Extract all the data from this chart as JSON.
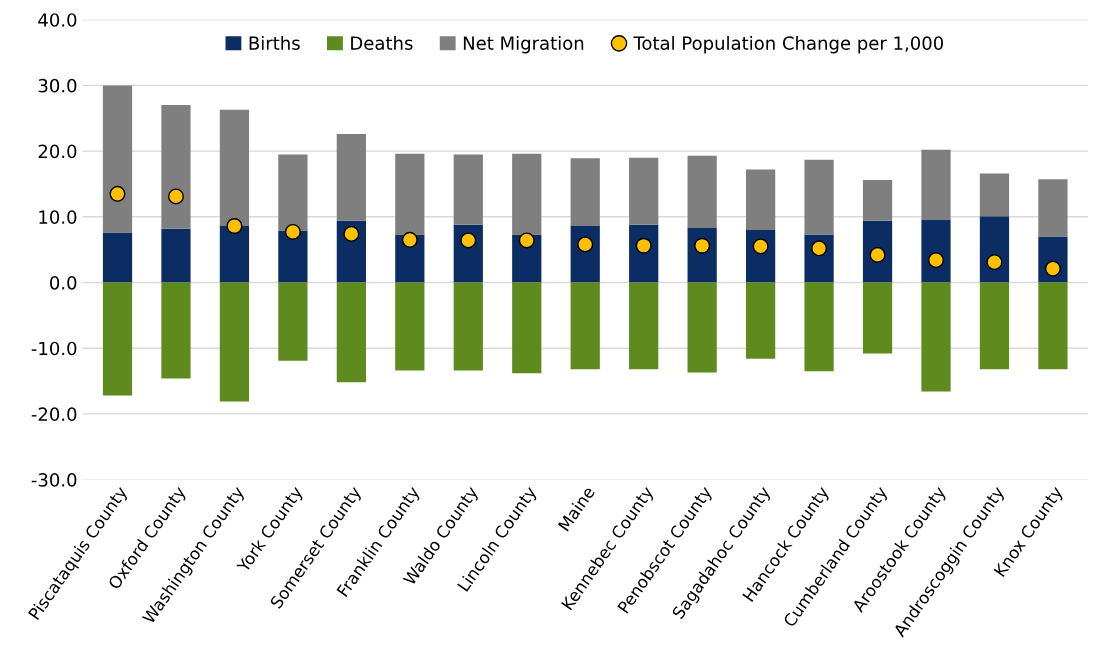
{
  "chart_data": {
    "type": "bar",
    "stacked": true,
    "categories": [
      "Piscataquis County",
      "Oxford County",
      "Washington County",
      "York County",
      "Somerset County",
      "Franklin County",
      "Waldo County",
      "Lincoln County",
      "Maine",
      "Kennebec County",
      "Penobscot County",
      "Sagadahoc County",
      "Hancock County",
      "Cumberland County",
      "Aroostook County",
      "Androscoggin County",
      "Knox County"
    ],
    "series": [
      {
        "name": "Births",
        "color": "#0b2d63",
        "values": [
          7.6,
          8.2,
          8.6,
          7.9,
          9.4,
          7.3,
          8.8,
          7.3,
          8.6,
          8.8,
          8.3,
          8.0,
          7.3,
          9.4,
          9.5,
          10.1,
          7.0
        ]
      },
      {
        "name": "Deaths",
        "color": "#5f8a1d",
        "values": [
          -17.2,
          -14.6,
          -18.1,
          -11.9,
          -15.2,
          -13.4,
          -13.4,
          -13.8,
          -13.2,
          -13.2,
          -13.7,
          -11.6,
          -13.5,
          -10.8,
          -16.6,
          -13.2,
          -13.2
        ]
      },
      {
        "name": "Net Migration",
        "color": "#7f7f7f",
        "values": [
          22.4,
          18.8,
          17.7,
          11.6,
          13.2,
          12.3,
          10.7,
          12.3,
          10.3,
          10.2,
          11.0,
          9.2,
          11.4,
          6.2,
          10.7,
          6.5,
          8.7
        ]
      },
      {
        "name": "Total Population Change per 1,000",
        "type": "scatter",
        "color": "#ffc000",
        "marker": "circle",
        "values": [
          13.5,
          13.1,
          8.6,
          7.7,
          7.4,
          6.5,
          6.4,
          6.4,
          5.8,
          5.6,
          5.6,
          5.5,
          5.2,
          4.2,
          3.4,
          3.1,
          2.1
        ]
      }
    ],
    "ylim": [
      -30,
      40
    ],
    "yticks": [
      {
        "value": -30,
        "label": "-30.0"
      },
      {
        "value": -20,
        "label": "-20.0"
      },
      {
        "value": -10,
        "label": "-10.0"
      },
      {
        "value": 0,
        "label": "0.0"
      },
      {
        "value": 10,
        "label": "10.0"
      },
      {
        "value": 20,
        "label": "20.0"
      },
      {
        "value": 30,
        "label": "30.0"
      },
      {
        "value": 40,
        "label": "40.0"
      }
    ],
    "grid": "y",
    "legend": "top"
  }
}
